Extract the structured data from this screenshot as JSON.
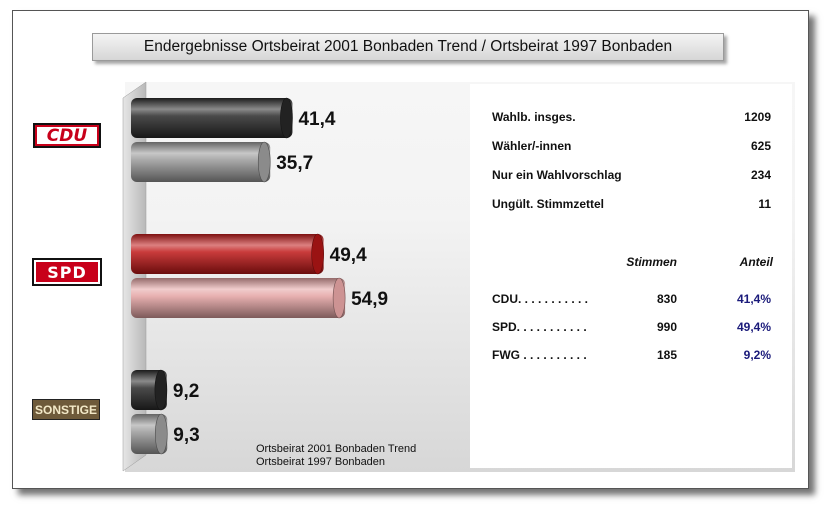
{
  "title": "Endergebnisse Ortsbeirat 2001 Bonbaden Trend / Ortsbeirat 1997 Bonbaden",
  "parties": [
    {
      "logo_label": "CDU",
      "color": "#c8001a"
    },
    {
      "logo_label": "SPD",
      "color": "#c8001a"
    },
    {
      "logo_label": "SONSTIGE",
      "color": "#6e5a3a"
    }
  ],
  "chart_data": {
    "type": "bar",
    "orientation": "horizontal",
    "categories": [
      "CDU",
      "SPD",
      "SONSTIGE"
    ],
    "series": [
      {
        "name": "Ortsbeirat 2001 Bonbaden Trend",
        "values": [
          41.4,
          49.4,
          9.2
        ],
        "value_labels": [
          "41,4",
          "49,4",
          "9,2"
        ],
        "colors": [
          "#2a2a2a",
          "#c01818",
          "#2a2a2a"
        ]
      },
      {
        "name": "Ortsbeirat 1997 Bonbaden",
        "values": [
          35.7,
          54.9,
          9.3
        ],
        "value_labels": [
          "35,7",
          "54,9",
          "9,3"
        ],
        "colors": [
          "#9a9a9a",
          "#e4a3a3",
          "#9a9a9a"
        ]
      }
    ],
    "xlim": [
      0,
      60
    ],
    "legend": [
      "Ortsbeirat 2001 Bonbaden Trend",
      "Ortsbeirat 1997 Bonbaden"
    ],
    "legend_position": "bottom-center"
  },
  "info": {
    "stats": [
      {
        "label": "Wahlb. insges.",
        "value": "1209"
      },
      {
        "label": "Wähler/-innen",
        "value": "625"
      },
      {
        "label": "Nur ein  Wahlvorschlag",
        "value": "234"
      },
      {
        "label": "Ungült. Stimmzettel",
        "value": "11"
      }
    ],
    "header_stimmen": "Stimmen",
    "header_anteil": "Anteil",
    "results": [
      {
        "party": "CDU. . . . . . . . . . .",
        "stimmen": "830",
        "anteil": "41,4%"
      },
      {
        "party": "SPD. . . . . . . . . . .",
        "stimmen": "990",
        "anteil": "49,4%"
      },
      {
        "party": "FWG . . . . . . . . . .",
        "stimmen": "185",
        "anteil": "9,2%"
      }
    ]
  }
}
